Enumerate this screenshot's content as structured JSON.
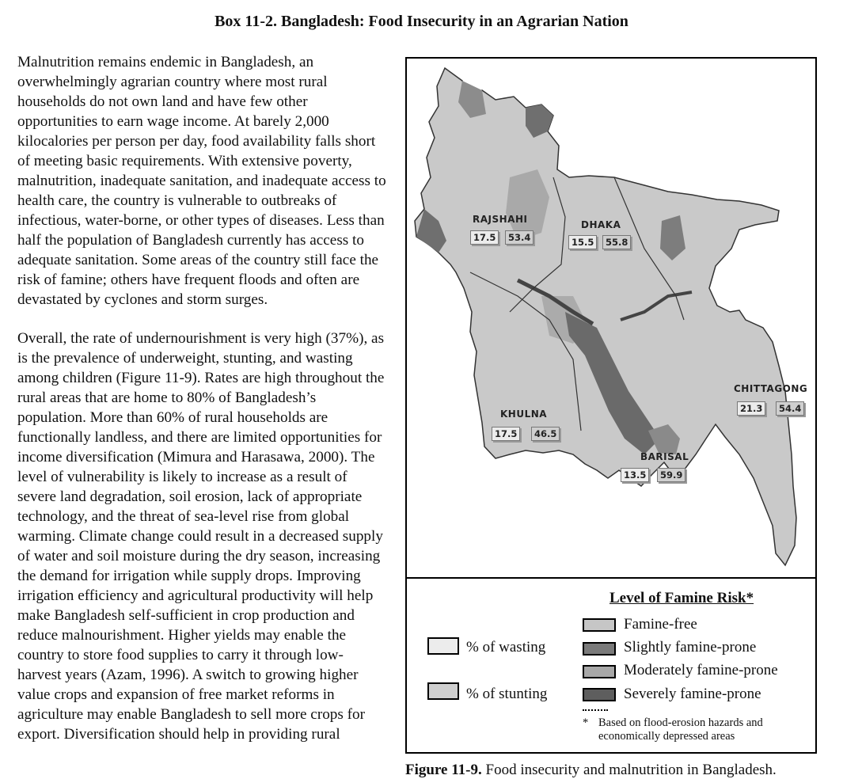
{
  "title": "Box 11-2. Bangladesh: Food Insecurity in an Agrarian Nation",
  "paragraphs": [
    "Malnutrition remains endemic in Bangladesh, an overwhelmingly agrarian country where most rural households do not own land and have few other opportunities to earn wage income. At barely 2,000 kilocalories per person per day, food availability falls short of meeting basic requirements. With extensive poverty, malnutrition, inadequate sanitation, and inadequate access to health care, the country is vulnerable to outbreaks of infectious, water-borne, or other types of diseases. Less than half the population of Bangladesh currently has access to adequate sanitation. Some areas of the country still face the risk of famine; others have frequent floods and often are devastated by cyclones and storm surges.",
    "Overall, the rate of undernourishment is very high (37%), as is the prevalence of underweight, stunting, and wasting among children (Figure 11-9). Rates are high throughout the rural areas that are home to 80% of Bangladesh’s population. More than 60% of rural households are functionally landless, and there are limited opportunities for income diversification (Mimura and Harasawa, 2000). The level of vulnerability is likely to increase as a result of severe land degradation, soil erosion, lack of appropriate technology, and the threat of sea-level rise from global warming. Climate change could result in a decreased supply of water and soil moisture during the dry season, increasing the demand for irrigation while supply drops. Improving irrigation efficiency and agricultural productivity will help make Bangladesh self-sufficient in crop production and reduce malnourishment. Higher yields may enable the country to store food supplies to carry it through low-harvest years (Azam, 1996). A switch to growing higher value crops and expansion of free market reforms in agriculture may enable Bangladesh to sell more crops for export. Diversification should help in providing rural"
  ],
  "map": {
    "regions": [
      {
        "name": "RAJSHAHI",
        "wasting": "17.5",
        "stunting": "53.4"
      },
      {
        "name": "DHAKA",
        "wasting": "15.5",
        "stunting": "55.8"
      },
      {
        "name": "CHITTAGONG",
        "wasting": "21.3",
        "stunting": "54.4"
      },
      {
        "name": "KHULNA",
        "wasting": "17.5",
        "stunting": "46.5"
      },
      {
        "name": "BARISAL",
        "wasting": "13.5",
        "stunting": "59.9"
      }
    ]
  },
  "legend": {
    "title": "Level of Famine Risk*",
    "wasting_label": "% of wasting",
    "stunting_label": "% of stunting",
    "risk_levels": [
      {
        "label": "Famine-free",
        "color": "#c6c6c6"
      },
      {
        "label": "Slightly famine-prone",
        "color": "#7a7a7a"
      },
      {
        "label": "Moderately famine-prone",
        "color": "#a8a8a8"
      },
      {
        "label": "Severely famine-prone",
        "color": "#5e5e5e"
      }
    ],
    "footnote_star": "*",
    "footnote": "Based on flood-erosion hazards and economically depressed areas"
  },
  "caption": {
    "label": "Figure 11-9.",
    "text": "Food insecurity and malnutrition in Bangladesh."
  }
}
